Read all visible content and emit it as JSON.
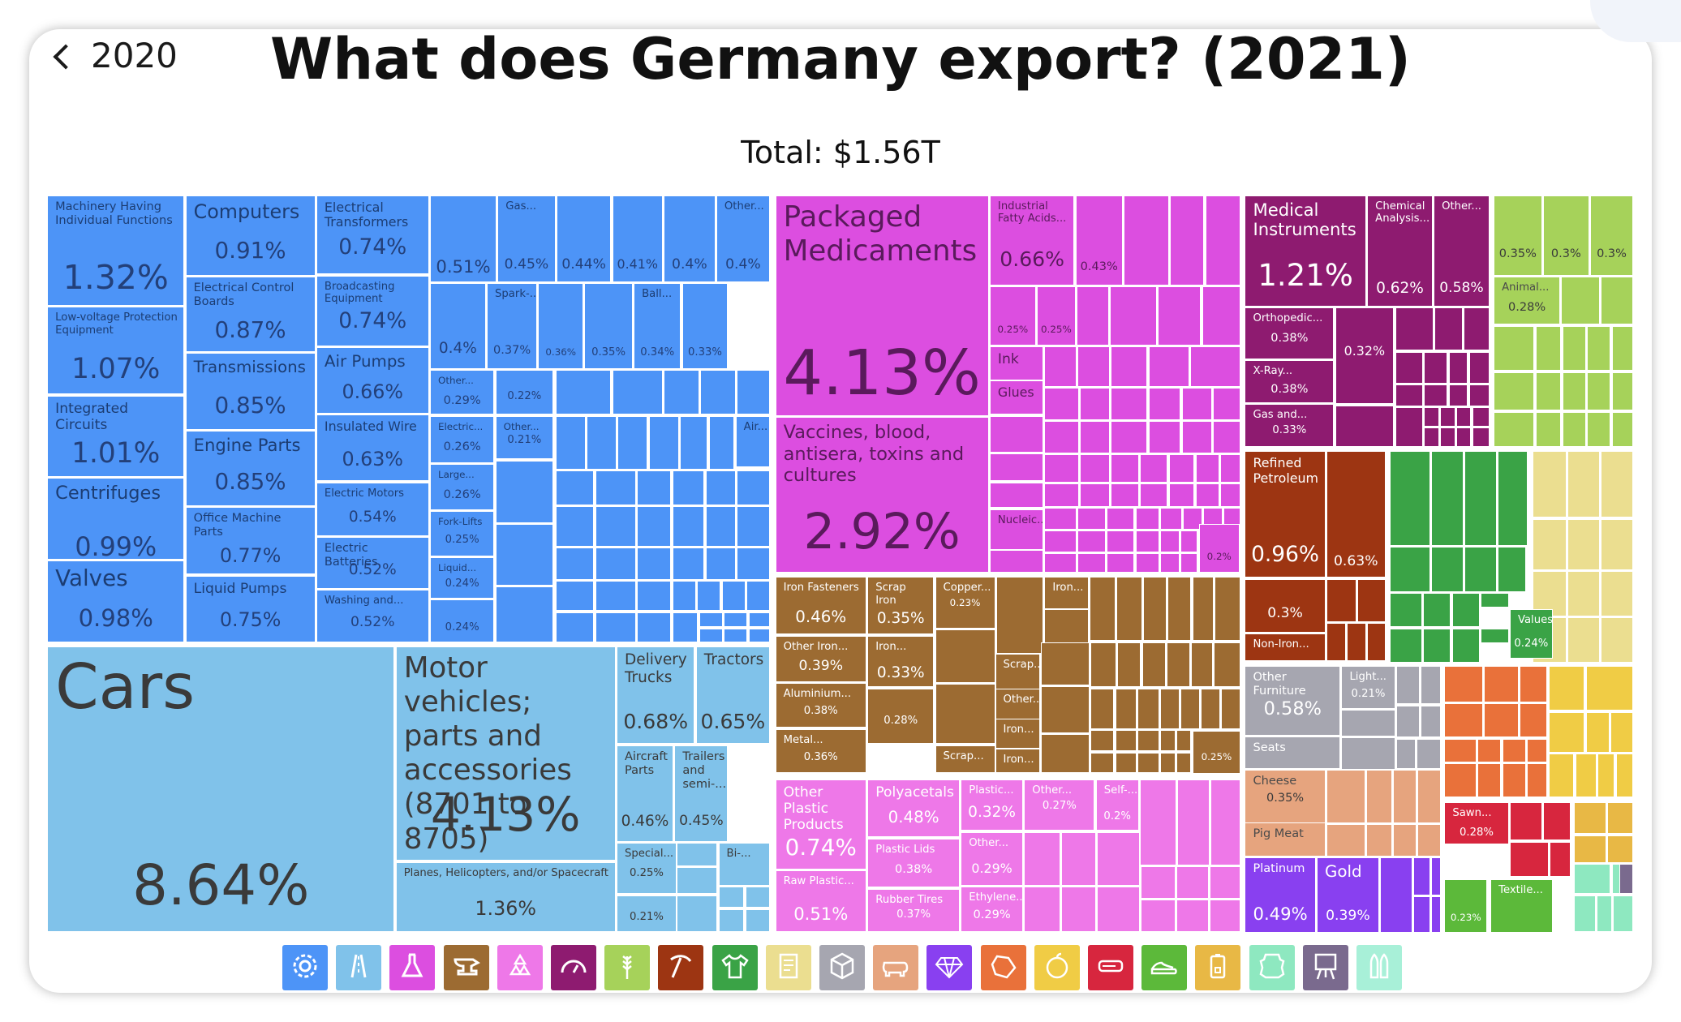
{
  "header": {
    "back_label": "2020",
    "title": "What does Germany export? (2021)",
    "total": "Total: $1.56T"
  },
  "chart_data": {
    "type": "treemap",
    "title": "What does Germany export? (2021)",
    "total": "$1.56T",
    "sectors": [
      {
        "name": "Machinery",
        "color": "#4d94f7"
      },
      {
        "name": "Transportation",
        "color": "#80c2ea"
      },
      {
        "name": "Chemical Products",
        "color": "#dc4ee0"
      },
      {
        "name": "Metals",
        "color": "#9c6b32"
      },
      {
        "name": "Plastics and Rubbers",
        "color": "#ee78e8"
      },
      {
        "name": "Instruments",
        "color": "#8e1b70"
      },
      {
        "name": "Vegetable Products",
        "color": "#a6d25a"
      },
      {
        "name": "Mineral Products",
        "color": "#9d3512"
      },
      {
        "name": "Textiles",
        "color": "#3aa346"
      },
      {
        "name": "Paper Goods",
        "color": "#ebde90"
      },
      {
        "name": "Miscellaneous",
        "color": "#a6a6b0"
      },
      {
        "name": "Foodstuffs",
        "color": "#e6a47e"
      },
      {
        "name": "Precious Metals",
        "color": "#8940f0"
      },
      {
        "name": "Stone And Glass",
        "color": "#e9713a"
      },
      {
        "name": "Foodstuffs 2",
        "color": "#f0cc45"
      },
      {
        "name": "Wood Products",
        "color": "#d7263e"
      },
      {
        "name": "Footwear and Headwear",
        "color": "#5cb93a"
      },
      {
        "name": "Weapons",
        "color": "#e8b845"
      },
      {
        "name": "Animal Hides",
        "color": "#8ee8c0"
      },
      {
        "name": "Arts and Antiques",
        "color": "#7a6a8e"
      }
    ],
    "items": [
      {
        "name": "Machinery Having\nIndividual Functions",
        "share": "1.32%",
        "sector": 0
      },
      {
        "name": "Low-voltage Protection\nEquipment",
        "share": "1.07%",
        "sector": 0
      },
      {
        "name": "Integrated Circuits",
        "share": "1.01%",
        "sector": 0
      },
      {
        "name": "Centrifuges",
        "share": "0.99%",
        "sector": 0
      },
      {
        "name": "Valves",
        "share": "0.98%",
        "sector": 0
      },
      {
        "name": "Computers",
        "share": "0.91%",
        "sector": 0
      },
      {
        "name": "Electrical Control\nBoards",
        "share": "0.87%",
        "sector": 0
      },
      {
        "name": "Transmissions",
        "share": "0.85%",
        "sector": 0
      },
      {
        "name": "Engine Parts",
        "share": "0.85%",
        "sector": 0
      },
      {
        "name": "Office Machine Parts",
        "share": "0.77%",
        "sector": 0
      },
      {
        "name": "Liquid Pumps",
        "share": "0.75%",
        "sector": 0
      },
      {
        "name": "Electrical\nTransformers",
        "share": "0.74%",
        "sector": 0
      },
      {
        "name": "Broadcasting\nEquipment",
        "share": "0.74%",
        "sector": 0
      },
      {
        "name": "Air Pumps",
        "share": "0.66%",
        "sector": 0
      },
      {
        "name": "Insulated Wire",
        "share": "0.63%",
        "sector": 0
      },
      {
        "name": "Electric Motors",
        "share": "0.54%",
        "sector": 0
      },
      {
        "name": "Electric Batteries",
        "share": "0.52%",
        "sector": 0
      },
      {
        "name": "Washing and...",
        "share": "0.52%",
        "sector": 0
      },
      {
        "name": "",
        "share": "0.51%",
        "sector": 0
      },
      {
        "name": "Gas...",
        "share": "0.45%",
        "sector": 0
      },
      {
        "name": "",
        "share": "0.44%",
        "sector": 0
      },
      {
        "name": "",
        "share": "0.41%",
        "sector": 0
      },
      {
        "name": "",
        "share": "0.4%",
        "sector": 0
      },
      {
        "name": "Other...",
        "share": "0.4%",
        "sector": 0
      },
      {
        "name": "",
        "share": "0.4%",
        "sector": 0
      },
      {
        "name": "Spark-...",
        "share": "0.37%",
        "sector": 0
      },
      {
        "name": "",
        "share": "0.36%",
        "sector": 0
      },
      {
        "name": "",
        "share": "0.35%",
        "sector": 0
      },
      {
        "name": "Ball...",
        "share": "0.34%",
        "sector": 0
      },
      {
        "name": "",
        "share": "0.33%",
        "sector": 0
      },
      {
        "name": "Other...",
        "share": "0.29%",
        "sector": 0
      },
      {
        "name": "",
        "share": "0.22%",
        "sector": 0
      },
      {
        "name": "Electric...",
        "share": "0.26%",
        "sector": 0
      },
      {
        "name": "Other...",
        "share": "0.21%",
        "sector": 0
      },
      {
        "name": "Large...",
        "share": "0.26%",
        "sector": 0
      },
      {
        "name": "Fork-Lifts",
        "share": "0.25%",
        "sector": 0
      },
      {
        "name": "Liquid...",
        "share": "0.24%",
        "sector": 0
      },
      {
        "name": "",
        "share": "0.24%",
        "sector": 0
      },
      {
        "name": "Air...",
        "share": "",
        "sector": 0
      },
      {
        "name": "Cars",
        "share": "8.64%",
        "sector": 1
      },
      {
        "name": "Motor vehicles;\nparts and\naccessories\n(8701 to 8705)",
        "share": "4.13%",
        "sector": 1
      },
      {
        "name": "Planes, Helicopters, and/or Spacecraft",
        "share": "1.36%",
        "sector": 1
      },
      {
        "name": "Delivery\nTrucks",
        "share": "0.68%",
        "sector": 1
      },
      {
        "name": "Tractors",
        "share": "0.65%",
        "sector": 1
      },
      {
        "name": "Aircraft\nParts",
        "share": "0.46%",
        "sector": 1
      },
      {
        "name": "Trailers\nand\nsemi-...",
        "share": "0.45%",
        "sector": 1
      },
      {
        "name": "Special...",
        "share": "0.25%",
        "sector": 1
      },
      {
        "name": "",
        "share": "0.21%",
        "sector": 1
      },
      {
        "name": "Bi-...",
        "share": "",
        "sector": 1
      },
      {
        "name": "Packaged\nMedicaments",
        "share": "4.13%",
        "sector": 2
      },
      {
        "name": "Vaccines, blood,\nantisera, toxins and\ncultures",
        "share": "2.92%",
        "sector": 2
      },
      {
        "name": "Industrial\nFatty Acids...",
        "share": "0.66%",
        "sector": 2
      },
      {
        "name": "",
        "share": "0.43%",
        "sector": 2
      },
      {
        "name": "",
        "share": "0.25%",
        "sector": 2
      },
      {
        "name": "",
        "share": "0.25%",
        "sector": 2
      },
      {
        "name": "Ink",
        "share": "",
        "sector": 2
      },
      {
        "name": "Glues",
        "share": "",
        "sector": 2
      },
      {
        "name": "Nucleic...",
        "share": "",
        "sector": 2
      },
      {
        "name": "",
        "share": "0.2%",
        "sector": 2
      },
      {
        "name": "Iron Fasteners",
        "share": "0.46%",
        "sector": 3
      },
      {
        "name": "Scrap Iron",
        "share": "0.35%",
        "sector": 3
      },
      {
        "name": "Copper...",
        "share": "0.23%",
        "sector": 3
      },
      {
        "name": "Iron...",
        "share": "",
        "sector": 3
      },
      {
        "name": "Other Iron...",
        "share": "0.39%",
        "sector": 3
      },
      {
        "name": "Iron...",
        "share": "0.33%",
        "sector": 3
      },
      {
        "name": "Aluminium...",
        "share": "0.38%",
        "sector": 3
      },
      {
        "name": "",
        "share": "0.28%",
        "sector": 3
      },
      {
        "name": "Metal...",
        "share": "0.36%",
        "sector": 3
      },
      {
        "name": "Scrap...",
        "share": "",
        "sector": 3
      },
      {
        "name": "Scrap...",
        "share": "",
        "sector": 3
      },
      {
        "name": "Other...",
        "share": "",
        "sector": 3
      },
      {
        "name": "Iron...",
        "share": "",
        "sector": 3
      },
      {
        "name": "Iron...",
        "share": "",
        "sector": 3
      },
      {
        "name": "",
        "share": "0.25%",
        "sector": 3
      },
      {
        "name": "Other Plastic\nProducts",
        "share": "0.74%",
        "sector": 4
      },
      {
        "name": "Polyacetals",
        "share": "0.48%",
        "sector": 4
      },
      {
        "name": "Plastic...",
        "share": "0.32%",
        "sector": 4
      },
      {
        "name": "Other...",
        "share": "0.27%",
        "sector": 4
      },
      {
        "name": "Self-...",
        "share": "0.2%",
        "sector": 4
      },
      {
        "name": "Plastic Lids",
        "share": "0.38%",
        "sector": 4
      },
      {
        "name": "Other...",
        "share": "0.29%",
        "sector": 4
      },
      {
        "name": "Raw Plastic...",
        "share": "0.51%",
        "sector": 4
      },
      {
        "name": "Rubber Tires",
        "share": "0.37%",
        "sector": 4
      },
      {
        "name": "Ethylene...",
        "share": "0.29%",
        "sector": 4
      },
      {
        "name": "Medical\nInstruments",
        "share": "1.21%",
        "sector": 5
      },
      {
        "name": "Chemical\nAnalysis...",
        "share": "0.62%",
        "sector": 5
      },
      {
        "name": "Other...",
        "share": "0.58%",
        "sector": 5
      },
      {
        "name": "Orthopedic...",
        "share": "0.38%",
        "sector": 5
      },
      {
        "name": "",
        "share": "0.32%",
        "sector": 5
      },
      {
        "name": "X-Ray...",
        "share": "0.38%",
        "sector": 5
      },
      {
        "name": "Gas and...",
        "share": "0.33%",
        "sector": 5
      },
      {
        "name": "",
        "share": "0.35%",
        "sector": 6
      },
      {
        "name": "",
        "share": "0.3%",
        "sector": 6
      },
      {
        "name": "",
        "share": "0.3%",
        "sector": 6
      },
      {
        "name": "Animal...",
        "share": "0.28%",
        "sector": 6
      },
      {
        "name": "Refined\nPetroleum",
        "share": "0.96%",
        "sector": 7
      },
      {
        "name": "",
        "share": "0.63%",
        "sector": 7
      },
      {
        "name": "",
        "share": "0.3%",
        "sector": 7
      },
      {
        "name": "Non-Iron...",
        "share": "",
        "sector": 7
      },
      {
        "name": "Values...",
        "share": "0.24%",
        "sector": 8
      },
      {
        "name": "Other Furniture",
        "share": "0.58%",
        "sector": 10
      },
      {
        "name": "Light...",
        "share": "0.21%",
        "sector": 10
      },
      {
        "name": "Seats",
        "share": "",
        "sector": 10
      },
      {
        "name": "Cheese",
        "share": "0.35%",
        "sector": 11
      },
      {
        "name": "Pig Meat",
        "share": "",
        "sector": 11
      },
      {
        "name": "Platinum",
        "share": "0.49%",
        "sector": 12
      },
      {
        "name": "Gold",
        "share": "0.39%",
        "sector": 12
      },
      {
        "name": "Sawn...",
        "share": "0.28%",
        "sector": 15
      },
      {
        "name": "",
        "share": "0.23%",
        "sector": 16
      },
      {
        "name": "Textile...",
        "share": "",
        "sector": 16
      }
    ]
  },
  "legend": [
    {
      "name": "machinery",
      "icon": "gear-icon",
      "color": "#4d94f7"
    },
    {
      "name": "transportation",
      "icon": "road-icon",
      "color": "#80c2ea"
    },
    {
      "name": "chemical-products",
      "icon": "flask-icon",
      "color": "#dc4ee0"
    },
    {
      "name": "metals",
      "icon": "anvil-icon",
      "color": "#9c6b32"
    },
    {
      "name": "plastics-rubbers",
      "icon": "recycle-icon",
      "color": "#ee78e8"
    },
    {
      "name": "instruments",
      "icon": "gauge-icon",
      "color": "#8e1b70"
    },
    {
      "name": "vegetable-products",
      "icon": "wheat-icon",
      "color": "#a6d25a"
    },
    {
      "name": "mineral-products",
      "icon": "pickaxe-icon",
      "color": "#9d3512"
    },
    {
      "name": "textiles",
      "icon": "shirt-icon",
      "color": "#3aa346"
    },
    {
      "name": "paper-goods",
      "icon": "scroll-icon",
      "color": "#ebde90"
    },
    {
      "name": "miscellaneous",
      "icon": "box-icon",
      "color": "#a6a6b0"
    },
    {
      "name": "animal-products",
      "icon": "pig-icon",
      "color": "#e6a47e"
    },
    {
      "name": "precious-metals",
      "icon": "diamond-icon",
      "color": "#8940f0"
    },
    {
      "name": "stone-glass",
      "icon": "gem-stone-icon",
      "color": "#e9713a"
    },
    {
      "name": "foodstuffs",
      "icon": "fruit-icon",
      "color": "#f0cc45"
    },
    {
      "name": "wood-products",
      "icon": "log-icon",
      "color": "#d7263e"
    },
    {
      "name": "footwear-headwear",
      "icon": "shoe-icon",
      "color": "#5cb93a"
    },
    {
      "name": "weapons",
      "icon": "canister-icon",
      "color": "#e8b845"
    },
    {
      "name": "animal-hides",
      "icon": "hide-icon",
      "color": "#8ee8c0"
    },
    {
      "name": "arts-antiques",
      "icon": "easel-icon",
      "color": "#7a6a8e"
    },
    {
      "name": "weapons-ammo",
      "icon": "bullets-icon",
      "color": "#a8f0d8"
    }
  ]
}
